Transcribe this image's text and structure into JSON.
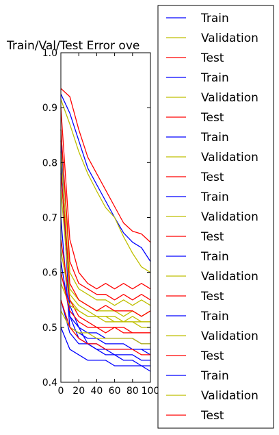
{
  "chart_data": {
    "type": "line",
    "title": "Train/Val/Test Error ove",
    "xlabel": "",
    "ylabel": "",
    "xlim": [
      0,
      100
    ],
    "ylim": [
      0.4,
      1.0
    ],
    "xticks": [
      0,
      20,
      40,
      60,
      80,
      100
    ],
    "xtick_labels": [
      "0",
      "20",
      "40",
      "60",
      "80",
      "100"
    ],
    "yticks": [
      0.4,
      0.5,
      0.6,
      0.7,
      0.8,
      0.9,
      1.0
    ],
    "ytick_labels": [
      "0.4",
      "0.5",
      "0.6",
      "0.7",
      "0.8",
      "0.9",
      "1.0"
    ],
    "grid": false,
    "legend_position": "right, outside plot",
    "series": [
      {
        "name": "Train",
        "color": "#0000ff",
        "x": [
          0,
          10,
          20,
          30,
          40,
          50,
          60,
          70,
          80,
          90,
          100
        ],
        "values": [
          0.925,
          0.89,
          0.84,
          0.79,
          0.76,
          0.73,
          0.7,
          0.672,
          0.655,
          0.645,
          0.62
        ]
      },
      {
        "name": "Validation",
        "color": "#bfbf00",
        "x": [
          0,
          10,
          20,
          30,
          40,
          50,
          60,
          70,
          80,
          90,
          100
        ],
        "values": [
          0.915,
          0.87,
          0.82,
          0.78,
          0.748,
          0.718,
          0.7,
          0.665,
          0.635,
          0.61,
          0.6
        ]
      },
      {
        "name": "Test",
        "color": "#ff0000",
        "x": [
          0,
          10,
          20,
          30,
          40,
          50,
          60,
          70,
          80,
          90,
          100
        ],
        "values": [
          0.935,
          0.92,
          0.86,
          0.81,
          0.78,
          0.75,
          0.72,
          0.69,
          0.675,
          0.67,
          0.655
        ]
      },
      {
        "name": "Train",
        "color": "#0000ff",
        "x": [
          0,
          10,
          20,
          30,
          40,
          50,
          60,
          70,
          80,
          90,
          100
        ],
        "values": [
          0.84,
          0.54,
          0.5,
          0.47,
          0.46,
          0.45,
          0.45,
          0.44,
          0.44,
          0.43,
          0.43
        ]
      },
      {
        "name": "Validation",
        "color": "#bfbf00",
        "x": [
          0,
          10,
          20,
          30,
          40,
          50,
          60,
          70,
          80,
          90,
          100
        ],
        "values": [
          0.86,
          0.6,
          0.57,
          0.56,
          0.55,
          0.55,
          0.54,
          0.55,
          0.54,
          0.55,
          0.54
        ]
      },
      {
        "name": "Test",
        "color": "#ff0000",
        "x": [
          0,
          10,
          20,
          30,
          40,
          50,
          60,
          70,
          80,
          90,
          100
        ],
        "values": [
          0.9,
          0.66,
          0.6,
          0.58,
          0.57,
          0.58,
          0.57,
          0.58,
          0.57,
          0.58,
          0.57
        ]
      },
      {
        "name": "Train",
        "color": "#0000ff",
        "x": [
          0,
          10,
          20,
          30,
          40,
          50,
          60,
          70,
          80,
          90,
          100
        ],
        "values": [
          0.8,
          0.52,
          0.48,
          0.47,
          0.46,
          0.46,
          0.45,
          0.45,
          0.45,
          0.44,
          0.44
        ]
      },
      {
        "name": "Validation",
        "color": "#bfbf00",
        "x": [
          0,
          10,
          20,
          30,
          40,
          50,
          60,
          70,
          80,
          90,
          100
        ],
        "values": [
          0.82,
          0.57,
          0.55,
          0.54,
          0.53,
          0.53,
          0.53,
          0.52,
          0.53,
          0.52,
          0.53
        ]
      },
      {
        "name": "Test",
        "color": "#ff0000",
        "x": [
          0,
          10,
          20,
          30,
          40,
          50,
          60,
          70,
          80,
          90,
          100
        ],
        "values": [
          0.86,
          0.62,
          0.58,
          0.57,
          0.56,
          0.56,
          0.55,
          0.56,
          0.55,
          0.56,
          0.55
        ]
      },
      {
        "name": "Train",
        "color": "#0000ff",
        "x": [
          0,
          10,
          20,
          30,
          40,
          50,
          60,
          70,
          80,
          90,
          100
        ],
        "values": [
          0.7,
          0.5,
          0.49,
          0.48,
          0.48,
          0.47,
          0.47,
          0.47,
          0.46,
          0.46,
          0.46
        ]
      },
      {
        "name": "Validation",
        "color": "#bfbf00",
        "x": [
          0,
          10,
          20,
          30,
          40,
          50,
          60,
          70,
          80,
          90,
          100
        ],
        "values": [
          0.75,
          0.56,
          0.54,
          0.53,
          0.52,
          0.52,
          0.52,
          0.51,
          0.52,
          0.51,
          0.51
        ]
      },
      {
        "name": "Test",
        "color": "#ff0000",
        "x": [
          0,
          10,
          20,
          30,
          40,
          50,
          60,
          70,
          80,
          90,
          100
        ],
        "values": [
          0.78,
          0.58,
          0.55,
          0.54,
          0.53,
          0.54,
          0.53,
          0.53,
          0.53,
          0.52,
          0.53
        ]
      },
      {
        "name": "Train",
        "color": "#0000ff",
        "x": [
          0,
          10,
          20,
          30,
          40,
          50,
          60,
          70,
          80,
          90,
          100
        ],
        "values": [
          0.62,
          0.52,
          0.5,
          0.49,
          0.49,
          0.48,
          0.48,
          0.48,
          0.48,
          0.47,
          0.47
        ]
      },
      {
        "name": "Validation",
        "color": "#bfbf00",
        "x": [
          0,
          10,
          20,
          30,
          40,
          50,
          60,
          70,
          80,
          90,
          100
        ],
        "values": [
          0.64,
          0.55,
          0.53,
          0.52,
          0.52,
          0.51,
          0.51,
          0.51,
          0.51,
          0.5,
          0.5
        ]
      },
      {
        "name": "Test",
        "color": "#ff0000",
        "x": [
          0,
          10,
          20,
          30,
          40,
          50,
          60,
          70,
          80,
          90,
          100
        ],
        "values": [
          0.66,
          0.55,
          0.52,
          0.51,
          0.5,
          0.5,
          0.5,
          0.5,
          0.49,
          0.49,
          0.49
        ]
      },
      {
        "name": "Train",
        "color": "#0000ff",
        "x": [
          0,
          10,
          20,
          30,
          40,
          50,
          60,
          70,
          80,
          90,
          100
        ],
        "values": [
          0.55,
          0.49,
          0.47,
          0.47,
          0.47,
          0.46,
          0.46,
          0.46,
          0.46,
          0.46,
          0.45
        ]
      },
      {
        "name": "Validation",
        "color": "#bfbf00",
        "x": [
          0,
          10,
          20,
          30,
          40,
          50,
          60,
          70,
          80,
          90,
          100
        ],
        "values": [
          0.58,
          0.54,
          0.53,
          0.52,
          0.52,
          0.52,
          0.51,
          0.51,
          0.51,
          0.51,
          0.51
        ]
      },
      {
        "name": "Test",
        "color": "#ff0000",
        "x": [
          0,
          10,
          20,
          30,
          40,
          50,
          60,
          70,
          80,
          90,
          100
        ],
        "values": [
          0.6,
          0.53,
          0.51,
          0.5,
          0.5,
          0.49,
          0.5,
          0.49,
          0.49,
          0.49,
          0.49
        ]
      },
      {
        "name": "Train",
        "color": "#0000ff",
        "x": [
          0,
          10,
          20,
          30,
          40,
          50,
          60,
          70,
          80,
          90,
          100
        ],
        "values": [
          0.5,
          0.46,
          0.45,
          0.44,
          0.44,
          0.44,
          0.43,
          0.43,
          0.43,
          0.43,
          0.42
        ]
      },
      {
        "name": "Validation",
        "color": "#bfbf00",
        "x": [
          0,
          10,
          20,
          30,
          40,
          50,
          60,
          70,
          80,
          90,
          100
        ],
        "values": [
          0.53,
          0.5,
          0.49,
          0.49,
          0.48,
          0.48,
          0.48,
          0.48,
          0.48,
          0.47,
          0.47
        ]
      },
      {
        "name": "Test",
        "color": "#ff0000",
        "x": [
          0,
          10,
          20,
          30,
          40,
          50,
          60,
          70,
          80,
          90,
          100
        ],
        "values": [
          0.55,
          0.5,
          0.48,
          0.47,
          0.47,
          0.46,
          0.46,
          0.46,
          0.46,
          0.45,
          0.45
        ]
      }
    ]
  }
}
